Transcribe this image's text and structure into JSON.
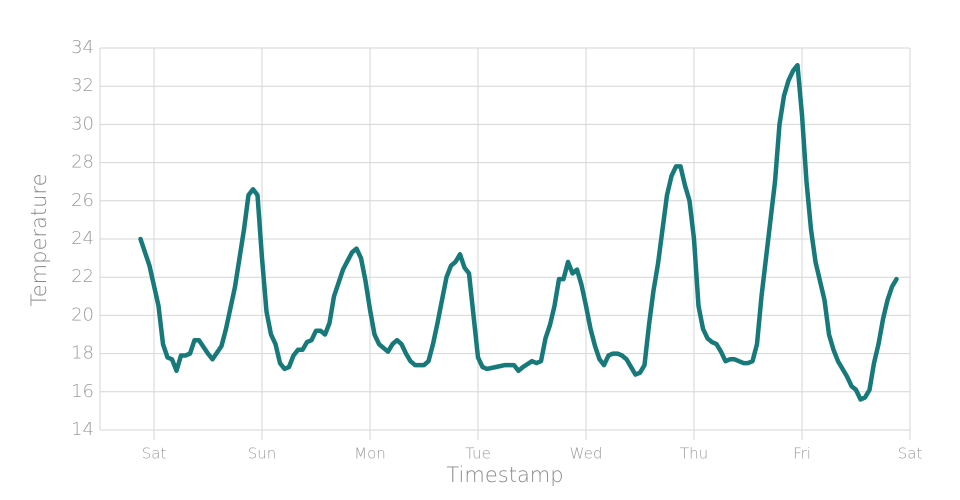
{
  "chart_data": {
    "type": "line",
    "x_label": "Timestamp",
    "y_label": "Temperature",
    "xlim": [
      -12,
      168
    ],
    "xticks": [
      {
        "value": 0,
        "label": "Sat"
      },
      {
        "value": 24,
        "label": "Sun"
      },
      {
        "value": 48,
        "label": "Mon"
      },
      {
        "value": 72,
        "label": "Tue"
      },
      {
        "value": 96,
        "label": "Wed"
      },
      {
        "value": 120,
        "label": "Thu"
      },
      {
        "value": 144,
        "label": "Fri"
      },
      {
        "value": 168,
        "label": "Sat"
      }
    ],
    "ylim": [
      14,
      34
    ],
    "yticks": [
      14,
      16,
      18,
      20,
      22,
      24,
      26,
      28,
      30,
      32,
      34
    ],
    "grid": true,
    "color": "#17797a",
    "x": [
      -3,
      -1,
      1,
      2,
      3,
      4,
      5,
      6,
      7,
      8,
      9,
      10,
      12,
      13,
      15,
      16,
      18,
      20,
      21,
      22,
      23,
      24,
      25,
      26,
      27,
      28,
      29,
      30,
      31,
      32,
      33,
      34,
      35,
      36,
      37,
      38,
      39,
      40,
      42,
      44,
      45,
      46,
      47,
      48,
      49,
      50,
      52,
      53,
      54,
      55,
      56,
      57,
      58,
      59,
      60,
      61,
      62,
      63,
      64,
      65,
      66,
      67,
      68,
      69,
      70,
      71,
      72,
      73,
      74,
      76,
      78,
      80,
      81,
      82,
      84,
      85,
      86,
      87,
      88,
      89,
      90,
      91,
      92,
      93,
      94,
      95,
      96,
      97,
      98,
      99,
      100,
      101,
      102,
      103,
      104,
      105,
      106,
      107,
      108,
      109,
      110,
      111,
      112,
      113,
      114,
      115,
      116,
      117,
      118,
      119,
      120,
      121,
      122,
      123,
      124,
      125,
      126,
      127,
      128,
      129,
      130,
      131,
      132,
      133,
      134,
      135,
      136,
      137,
      138,
      139,
      140,
      141,
      142,
      143,
      144,
      145,
      146,
      147,
      148,
      149,
      150,
      151,
      152,
      153,
      154,
      155,
      156,
      157,
      158,
      159,
      160,
      161,
      162,
      163,
      164,
      165
    ],
    "values": [
      24.0,
      22.6,
      20.5,
      18.5,
      17.8,
      17.7,
      17.1,
      17.9,
      17.9,
      18.0,
      18.7,
      18.7,
      18.0,
      17.7,
      18.4,
      19.3,
      21.5,
      24.5,
      26.3,
      26.6,
      26.3,
      23.0,
      20.2,
      19.0,
      18.5,
      17.5,
      17.2,
      17.3,
      17.9,
      18.2,
      18.2,
      18.6,
      18.7,
      19.2,
      19.2,
      19.0,
      19.6,
      21.0,
      22.4,
      23.3,
      23.5,
      23.0,
      21.8,
      20.3,
      19.0,
      18.5,
      18.1,
      18.5,
      18.7,
      18.5,
      18.0,
      17.6,
      17.4,
      17.4,
      17.4,
      17.6,
      18.5,
      19.6,
      20.8,
      22.0,
      22.6,
      22.8,
      23.2,
      22.5,
      22.2,
      20.0,
      17.8,
      17.3,
      17.2,
      17.3,
      17.4,
      17.4,
      17.1,
      17.3,
      17.6,
      17.5,
      17.6,
      18.8,
      19.5,
      20.5,
      21.9,
      21.9,
      22.8,
      22.2,
      22.4,
      21.6,
      20.5,
      19.3,
      18.4,
      17.7,
      17.4,
      17.9,
      18.0,
      18.0,
      17.9,
      17.7,
      17.3,
      16.9,
      17.0,
      17.4,
      19.5,
      21.3,
      22.7,
      24.5,
      26.3,
      27.3,
      27.8,
      27.8,
      26.8,
      26.0,
      24.0,
      20.5,
      19.3,
      18.8,
      18.6,
      18.5,
      18.1,
      17.6,
      17.7,
      17.7,
      17.6,
      17.5,
      17.5,
      17.6,
      18.5,
      21.0,
      23.0,
      25.0,
      27.0,
      30.0,
      31.5,
      32.3,
      32.8,
      33.1,
      30.5,
      27.0,
      24.5,
      22.8,
      21.8,
      20.8,
      19.0,
      18.2,
      17.6,
      17.2,
      16.8,
      16.3,
      16.1,
      15.6,
      15.7,
      16.1,
      17.5,
      18.5,
      19.8,
      20.8,
      21.5,
      21.9
    ]
  }
}
